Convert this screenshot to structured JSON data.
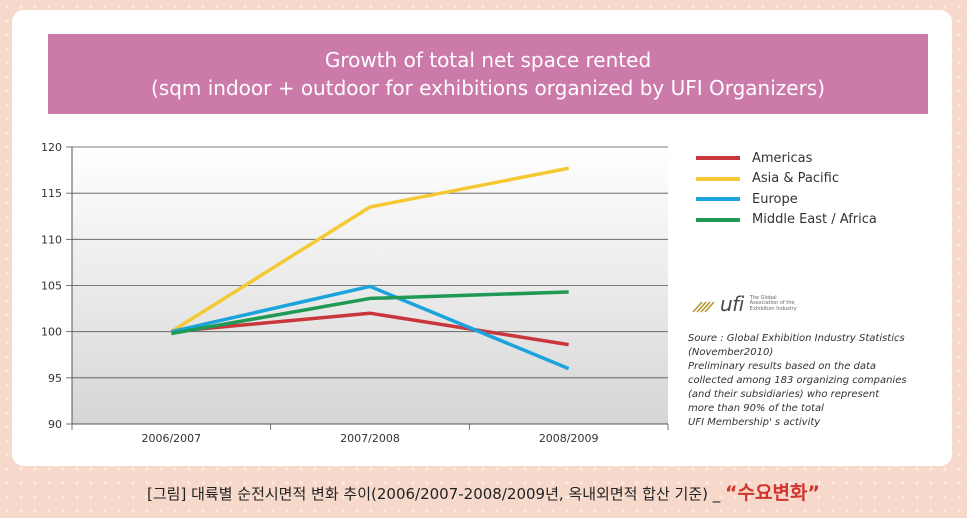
{
  "title_lines": [
    "Growth of total net space rented",
    "(sqm indoor + outdoor for exhibitions organized by UFI Organizers)"
  ],
  "chart_data": {
    "type": "line",
    "title": "Growth of total net space rented (sqm indoor + outdoor for exhibitions organized by UFI Organizers)",
    "categories": [
      "2006/2007",
      "2007/2008",
      "2008/2009"
    ],
    "ylim": [
      90,
      120
    ],
    "yticks": [
      "90",
      "95",
      "100",
      "105",
      "110",
      "115",
      "120"
    ],
    "grid": true,
    "legend_position": "right",
    "series": [
      {
        "name": "Americas",
        "color": "#c9373c",
        "values": [
          100,
          102,
          98.6
        ]
      },
      {
        "name": "Asia & Pacific",
        "color": "#f5c934",
        "values": [
          100,
          113.5,
          117.7
        ]
      },
      {
        "name": "Europe",
        "color": "#1aa3dc",
        "values": [
          100,
          104.9,
          96
        ]
      },
      {
        "name": "Middle East / Africa",
        "color": "#1e9a55",
        "values": [
          99.8,
          103.6,
          104.3
        ]
      }
    ]
  },
  "logo": {
    "text": "ufi",
    "tagline": [
      "The Global",
      "Association of the",
      "Exhibition Industry"
    ]
  },
  "source_lines": [
    "Soure : Global Exhibition Industry Statistics",
    "(November2010)",
    "Preliminary results based on the data",
    "collected among 183 organizing companies",
    "(and their subsidiaries) who represent",
    "more than 90% of the total",
    "UFI Membership' s activity"
  ],
  "caption": {
    "text": "[그림] 대륙별 순전시면적 변화 추이(2006/2007-2008/2009년, 옥내외면적 합산 기준) _ ",
    "emphasis": "“수요변화”"
  }
}
